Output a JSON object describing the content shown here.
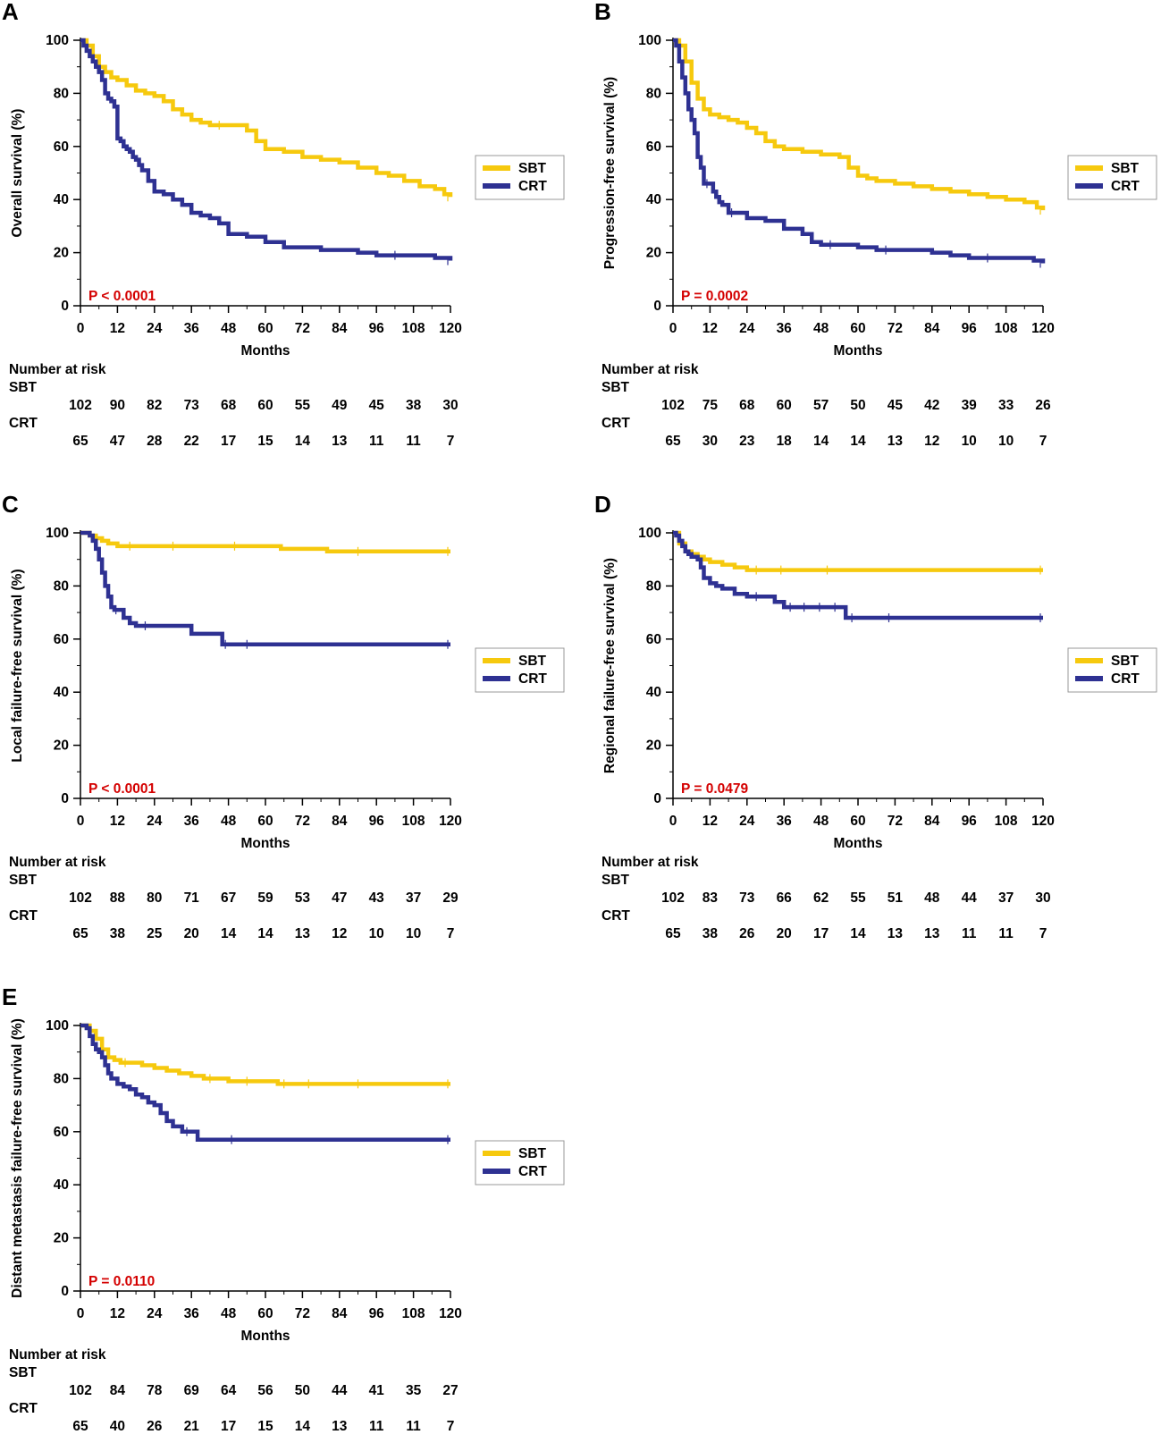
{
  "colors": {
    "SBT": "#f6c90e",
    "CRT": "#2e3192",
    "pvalue": "#d40000",
    "axis": "#000000"
  },
  "risk_table": {
    "title": "Number at risk",
    "groups": [
      "SBT",
      "CRT"
    ]
  },
  "chart_data": [
    {
      "panel": "A",
      "type": "line",
      "subtype": "kaplan-meier",
      "ylabel": "Overall survival (%)",
      "xlabel": "Months",
      "xticks": [
        0,
        12,
        24,
        36,
        48,
        60,
        72,
        84,
        96,
        108,
        120
      ],
      "yticks": [
        0,
        20,
        40,
        60,
        80,
        100
      ],
      "xlim": [
        0,
        120
      ],
      "ylim": [
        0,
        100
      ],
      "pvalue": "P < 0.0001",
      "legend": [
        "SBT",
        "CRT"
      ],
      "series": [
        {
          "name": "SBT",
          "x": [
            0,
            2,
            4,
            6,
            8,
            10,
            12,
            15,
            18,
            21,
            24,
            27,
            30,
            33,
            36,
            39,
            42,
            48,
            54,
            57,
            60,
            66,
            72,
            78,
            84,
            90,
            96,
            100,
            105,
            110,
            115,
            118,
            120
          ],
          "y": [
            100,
            98,
            94,
            90,
            88,
            86,
            85,
            83,
            81,
            80,
            79,
            77,
            74,
            72,
            70,
            69,
            68,
            68,
            66,
            62,
            59,
            58,
            56,
            55,
            54,
            52,
            50,
            49,
            47,
            45,
            44,
            42,
            41
          ]
        },
        {
          "name": "CRT",
          "x": [
            0,
            1,
            2,
            3,
            4,
            5,
            6,
            7,
            8,
            9,
            10,
            11,
            12,
            13,
            14,
            15,
            16,
            17,
            18,
            19,
            20,
            22,
            24,
            27,
            30,
            33,
            36,
            39,
            42,
            45,
            48,
            54,
            60,
            66,
            78,
            90,
            96,
            108,
            115,
            120
          ],
          "y": [
            100,
            98,
            96,
            94,
            92,
            90,
            88,
            85,
            80,
            78,
            77,
            75,
            63,
            62,
            60,
            59,
            58,
            56,
            55,
            53,
            51,
            47,
            43,
            42,
            40,
            38,
            35,
            34,
            33,
            31,
            27,
            26,
            24,
            22,
            21,
            20,
            19,
            19,
            18,
            17
          ]
        }
      ],
      "risk": {
        "SBT": [
          102,
          90,
          82,
          73,
          68,
          60,
          55,
          49,
          45,
          38,
          30
        ],
        "CRT": [
          65,
          47,
          28,
          22,
          17,
          15,
          14,
          13,
          11,
          11,
          7
        ]
      }
    },
    {
      "panel": "B",
      "type": "line",
      "subtype": "kaplan-meier",
      "ylabel": "Progression-free survival (%)",
      "xlabel": "Months",
      "xticks": [
        0,
        12,
        24,
        36,
        48,
        60,
        72,
        84,
        96,
        108,
        120
      ],
      "yticks": [
        0,
        20,
        40,
        60,
        80,
        100
      ],
      "xlim": [
        0,
        120
      ],
      "ylim": [
        0,
        100
      ],
      "pvalue": "P = 0.0002",
      "legend": [
        "SBT",
        "CRT"
      ],
      "series": [
        {
          "name": "SBT",
          "x": [
            0,
            2,
            4,
            6,
            8,
            10,
            12,
            15,
            18,
            21,
            24,
            27,
            30,
            33,
            36,
            42,
            48,
            54,
            57,
            60,
            63,
            66,
            72,
            78,
            84,
            90,
            96,
            102,
            108,
            114,
            118,
            120
          ],
          "y": [
            100,
            98,
            92,
            84,
            78,
            74,
            72,
            71,
            70,
            69,
            67,
            65,
            62,
            60,
            59,
            58,
            57,
            56,
            52,
            49,
            48,
            47,
            46,
            45,
            44,
            43,
            42,
            41,
            40,
            39,
            37,
            36
          ]
        },
        {
          "name": "CRT",
          "x": [
            0,
            1,
            2,
            3,
            4,
            5,
            6,
            7,
            8,
            9,
            10,
            12,
            13,
            14,
            15,
            16,
            18,
            20,
            24,
            30,
            36,
            42,
            45,
            48,
            54,
            60,
            66,
            72,
            84,
            90,
            96,
            108,
            117,
            120
          ],
          "y": [
            100,
            98,
            92,
            86,
            80,
            74,
            70,
            65,
            56,
            52,
            46,
            46,
            43,
            41,
            39,
            38,
            35,
            35,
            33,
            32,
            29,
            27,
            24,
            23,
            23,
            22,
            21,
            21,
            20,
            19,
            18,
            18,
            17,
            16
          ]
        }
      ],
      "risk": {
        "SBT": [
          102,
          75,
          68,
          60,
          57,
          50,
          45,
          42,
          39,
          33,
          26
        ],
        "CRT": [
          65,
          30,
          23,
          18,
          14,
          14,
          13,
          12,
          10,
          10,
          7
        ]
      }
    },
    {
      "panel": "C",
      "type": "line",
      "subtype": "kaplan-meier",
      "ylabel": "Local failure-free survival (%)",
      "xlabel": "Months",
      "xticks": [
        0,
        12,
        24,
        36,
        48,
        60,
        72,
        84,
        96,
        108,
        120
      ],
      "yticks": [
        0,
        20,
        40,
        60,
        80,
        100
      ],
      "xlim": [
        0,
        120
      ],
      "ylim": [
        0,
        100
      ],
      "pvalue": "P < 0.0001",
      "legend": [
        "SBT",
        "CRT"
      ],
      "series": [
        {
          "name": "SBT",
          "x": [
            0,
            3,
            5,
            7,
            9,
            12,
            20,
            40,
            60,
            65,
            80,
            100,
            120
          ],
          "y": [
            100,
            99,
            98,
            97,
            96,
            95,
            95,
            95,
            95,
            94,
            93,
            93,
            93
          ]
        },
        {
          "name": "CRT",
          "x": [
            0,
            3,
            4,
            5,
            6,
            7,
            8,
            9,
            10,
            11,
            12,
            14,
            16,
            18,
            24,
            36,
            46,
            48,
            60,
            120
          ],
          "y": [
            100,
            99,
            97,
            94,
            90,
            85,
            80,
            76,
            72,
            71,
            71,
            68,
            66,
            65,
            65,
            62,
            58,
            58,
            58,
            58
          ]
        }
      ],
      "risk": {
        "SBT": [
          102,
          88,
          80,
          71,
          67,
          59,
          53,
          47,
          43,
          37,
          29
        ],
        "CRT": [
          65,
          38,
          25,
          20,
          14,
          14,
          13,
          12,
          10,
          10,
          7
        ]
      }
    },
    {
      "panel": "D",
      "type": "line",
      "subtype": "kaplan-meier",
      "ylabel": "Regional failure-free survival (%)",
      "xlabel": "Months",
      "xticks": [
        0,
        12,
        24,
        36,
        48,
        60,
        72,
        84,
        96,
        108,
        120
      ],
      "yticks": [
        0,
        20,
        40,
        60,
        80,
        100
      ],
      "xlim": [
        0,
        120
      ],
      "ylim": [
        0,
        100
      ],
      "pvalue": "P = 0.0479",
      "legend": [
        "SBT",
        "CRT"
      ],
      "series": [
        {
          "name": "SBT",
          "x": [
            0,
            2,
            4,
            6,
            8,
            10,
            12,
            16,
            20,
            24,
            30,
            40,
            60,
            120
          ],
          "y": [
            100,
            96,
            93,
            92,
            91,
            90,
            89,
            88,
            87,
            86,
            86,
            86,
            86,
            86
          ]
        },
        {
          "name": "CRT",
          "x": [
            0,
            1,
            2,
            3,
            4,
            5,
            6,
            8,
            9,
            10,
            12,
            14,
            16,
            20,
            24,
            30,
            33,
            36,
            40,
            45,
            50,
            55,
            56,
            60,
            80,
            120
          ],
          "y": [
            100,
            99,
            97,
            95,
            93,
            92,
            91,
            90,
            87,
            83,
            81,
            80,
            79,
            77,
            76,
            76,
            74,
            72,
            72,
            72,
            72,
            72,
            68,
            68,
            68,
            68
          ]
        }
      ],
      "risk": {
        "SBT": [
          102,
          83,
          73,
          66,
          62,
          55,
          51,
          48,
          44,
          37,
          30
        ],
        "CRT": [
          65,
          38,
          26,
          20,
          17,
          14,
          13,
          13,
          11,
          11,
          7
        ]
      }
    },
    {
      "panel": "E",
      "type": "line",
      "subtype": "kaplan-meier",
      "ylabel": "Distant metastasis failure-free survival (%)",
      "xlabel": "Months",
      "xticks": [
        0,
        12,
        24,
        36,
        48,
        60,
        72,
        84,
        96,
        108,
        120
      ],
      "yticks": [
        0,
        20,
        40,
        60,
        80,
        100
      ],
      "xlim": [
        0,
        120
      ],
      "ylim": [
        0,
        100
      ],
      "pvalue": "P = 0.0110",
      "legend": [
        "SBT",
        "CRT"
      ],
      "series": [
        {
          "name": "SBT",
          "x": [
            0,
            3,
            5,
            7,
            9,
            11,
            13,
            16,
            20,
            24,
            28,
            32,
            36,
            40,
            44,
            48,
            60,
            64,
            68,
            80,
            100,
            120
          ],
          "y": [
            100,
            98,
            95,
            91,
            88,
            87,
            86,
            86,
            85,
            84,
            83,
            82,
            81,
            80,
            80,
            79,
            79,
            78,
            78,
            78,
            78,
            78
          ]
        },
        {
          "name": "CRT",
          "x": [
            0,
            2,
            3,
            4,
            5,
            6,
            7,
            8,
            9,
            10,
            12,
            14,
            16,
            18,
            20,
            22,
            24,
            26,
            28,
            30,
            33,
            36,
            38,
            60,
            120
          ],
          "y": [
            100,
            99,
            96,
            93,
            91,
            90,
            88,
            85,
            82,
            80,
            78,
            77,
            76,
            74,
            73,
            71,
            70,
            67,
            64,
            62,
            60,
            60,
            57,
            57,
            57
          ]
        }
      ],
      "risk": {
        "SBT": [
          102,
          84,
          78,
          69,
          64,
          56,
          50,
          44,
          41,
          35,
          27
        ],
        "CRT": [
          65,
          40,
          26,
          21,
          17,
          15,
          14,
          13,
          11,
          11,
          7
        ]
      }
    }
  ]
}
